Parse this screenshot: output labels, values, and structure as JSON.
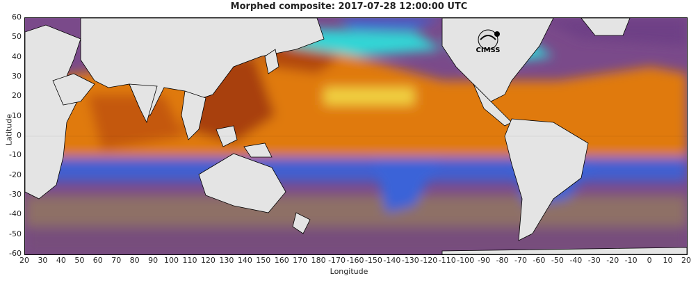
{
  "title": "Morphed composite: 2017-07-28 12:00:00 UTC",
  "axes": {
    "xlabel": "Longitude",
    "ylabel": "Latitude",
    "x_ticks": [
      "20",
      "30",
      "40",
      "50",
      "60",
      "70",
      "80",
      "90",
      "100",
      "110",
      "120",
      "130",
      "140",
      "150",
      "160",
      "170",
      "180",
      "-170",
      "-160",
      "-150",
      "-140",
      "-130",
      "-120",
      "-110",
      "-100",
      "-90",
      "-80",
      "-70",
      "-60",
      "-50",
      "-40",
      "-30",
      "-20",
      "-10",
      "0",
      "10",
      "20"
    ],
    "y_ticks": [
      "60",
      "50",
      "40",
      "30",
      "20",
      "10",
      "0",
      "-10",
      "-20",
      "-30",
      "-40",
      "-50",
      "-60"
    ]
  },
  "logo": {
    "text": "CIMSS",
    "icon": "cimss-logo-icon"
  },
  "colors": {
    "land": "#e4e4e4",
    "coast": "#000000",
    "dry": "#6e3f86",
    "cool": "#8a6a70",
    "blue": "#3a63d8",
    "cyan": "#33d6d6",
    "green": "#7fe07a",
    "yellow": "#f0d040",
    "orange": "#e07a10",
    "brown": "#a8400a"
  }
}
